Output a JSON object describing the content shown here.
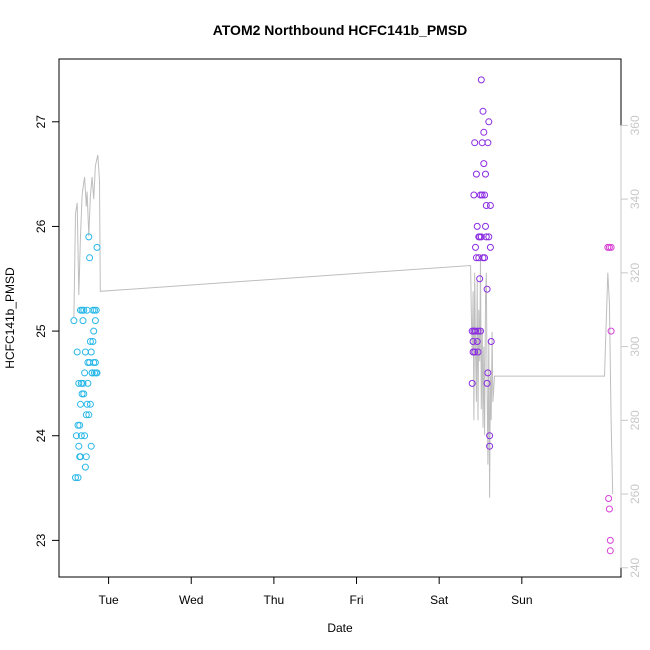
{
  "chart_data": {
    "type": "scatter",
    "title": "ATOM2 Northbound HCFC141b_PMSD",
    "xlabel": "Date",
    "ylabel": "HCFC141b_PMSD",
    "x_ticks": [
      "Tue",
      "Wed",
      "Thu",
      "Fri",
      "Sat",
      "Sun"
    ],
    "x_tick_pos": [
      1,
      2,
      3,
      4,
      5,
      6
    ],
    "xlim": [
      0.4,
      7.2
    ],
    "ylim": [
      22.65,
      27.6
    ],
    "y_ticks": [
      23,
      24,
      25,
      26,
      27
    ],
    "y2lim": [
      237.5,
      378
    ],
    "y2_ticks": [
      240,
      260,
      280,
      300,
      320,
      340,
      360
    ],
    "grid": false,
    "colors": {
      "early": "#29b8e8",
      "middle": "#8a2be2",
      "late": "#d63fd6",
      "overlay": "#bebebe",
      "axis": "#000000",
      "right_axis": "#c8c8c8"
    },
    "series": [
      {
        "color_key": "early",
        "x": [
          0.58,
          0.6,
          0.61,
          0.62,
          0.63,
          0.63,
          0.64,
          0.64,
          0.65,
          0.65,
          0.66,
          0.66,
          0.66,
          0.67,
          0.67,
          0.68,
          0.68,
          0.69,
          0.69,
          0.7,
          0.7,
          0.71,
          0.71,
          0.72,
          0.72,
          0.73,
          0.73,
          0.74,
          0.74,
          0.75,
          0.75,
          0.76,
          0.76,
          0.77,
          0.77,
          0.78,
          0.78,
          0.79,
          0.79,
          0.8,
          0.8,
          0.81,
          0.81,
          0.82,
          0.82,
          0.83,
          0.83,
          0.84,
          0.84,
          0.85,
          0.85,
          0.86,
          0.86
        ],
        "y": [
          25.1,
          23.6,
          24.0,
          24.8,
          23.6,
          24.1,
          24.5,
          23.9,
          23.8,
          24.1,
          25.2,
          24.3,
          23.8,
          24.5,
          24.0,
          25.2,
          24.4,
          25.1,
          24.5,
          24.4,
          25.2,
          24.6,
          24.0,
          23.7,
          24.8,
          23.8,
          24.2,
          24.3,
          25.2,
          24.7,
          24.5,
          25.9,
          24.2,
          24.7,
          25.7,
          24.9,
          24.3,
          24.8,
          23.9,
          24.6,
          24.6,
          25.2,
          24.9,
          25.0,
          24.7,
          25.2,
          24.6,
          25.1,
          24.7,
          25.2,
          24.6,
          25.8,
          24.6
        ]
      },
      {
        "color_key": "middle",
        "x": [
          5.4,
          5.4,
          5.41,
          5.41,
          5.42,
          5.42,
          5.43,
          5.43,
          5.44,
          5.44,
          5.45,
          5.45,
          5.46,
          5.46,
          5.47,
          5.47,
          5.48,
          5.48,
          5.49,
          5.49,
          5.5,
          5.5,
          5.51,
          5.51,
          5.52,
          5.52,
          5.53,
          5.53,
          5.54,
          5.54,
          5.55,
          5.55,
          5.56,
          5.56,
          5.57,
          5.57,
          5.58,
          5.58,
          5.59,
          5.59,
          5.6,
          5.6,
          5.61,
          5.61,
          5.62,
          5.62,
          5.63
        ],
        "y": [
          24.5,
          25.0,
          24.8,
          24.9,
          25.0,
          26.3,
          24.8,
          26.8,
          25.0,
          25.8,
          26.5,
          25.7,
          26.0,
          24.9,
          25.0,
          24.8,
          25.9,
          25.7,
          25.9,
          25.5,
          25.0,
          26.3,
          27.4,
          25.9,
          26.3,
          26.8,
          27.1,
          25.7,
          26.6,
          26.9,
          26.3,
          25.7,
          26.0,
          26.5,
          25.9,
          26.2,
          25.4,
          24.5,
          24.6,
          26.8,
          27.0,
          25.9,
          24.0,
          23.9,
          26.2,
          25.8,
          24.9
        ]
      },
      {
        "color_key": "late",
        "x": [
          7.04,
          7.05,
          7.06,
          7.06,
          7.07,
          7.07,
          7.08,
          7.08
        ],
        "y": [
          25.8,
          23.4,
          25.8,
          23.3,
          22.9,
          23.0,
          25.0,
          25.8
        ]
      }
    ],
    "overlay": {
      "axis": "right",
      "color_key": "overlay",
      "x": [
        0.58,
        0.6,
        0.62,
        0.64,
        0.66,
        0.68,
        0.69,
        0.71,
        0.73,
        0.74,
        0.76,
        0.78,
        0.8,
        0.82,
        0.84,
        0.87,
        0.89,
        0.9,
        5.38,
        5.39,
        5.4,
        5.41,
        5.42,
        5.43,
        5.44,
        5.45,
        5.46,
        5.47,
        5.48,
        5.49,
        5.5,
        5.51,
        5.52,
        5.53,
        5.54,
        5.55,
        5.56,
        5.57,
        5.58,
        5.59,
        5.6,
        5.61,
        5.62,
        5.63,
        5.64,
        5.65,
        5.67,
        5.69,
        7.0,
        7.04,
        7.06,
        7.08,
        7.1
      ],
      "y": [
        308,
        336,
        339,
        314,
        330,
        341,
        343,
        346,
        338,
        342,
        330,
        341,
        346,
        340,
        349,
        352,
        345,
        315,
        322,
        308,
        298,
        315,
        280,
        320,
        300,
        285,
        318,
        280,
        310,
        296,
        325,
        283,
        305,
        278,
        300,
        276,
        313,
        320,
        290,
        268,
        302,
        259,
        292,
        280,
        304,
        285,
        292,
        292,
        292,
        320,
        312,
        280,
        260
      ]
    }
  }
}
